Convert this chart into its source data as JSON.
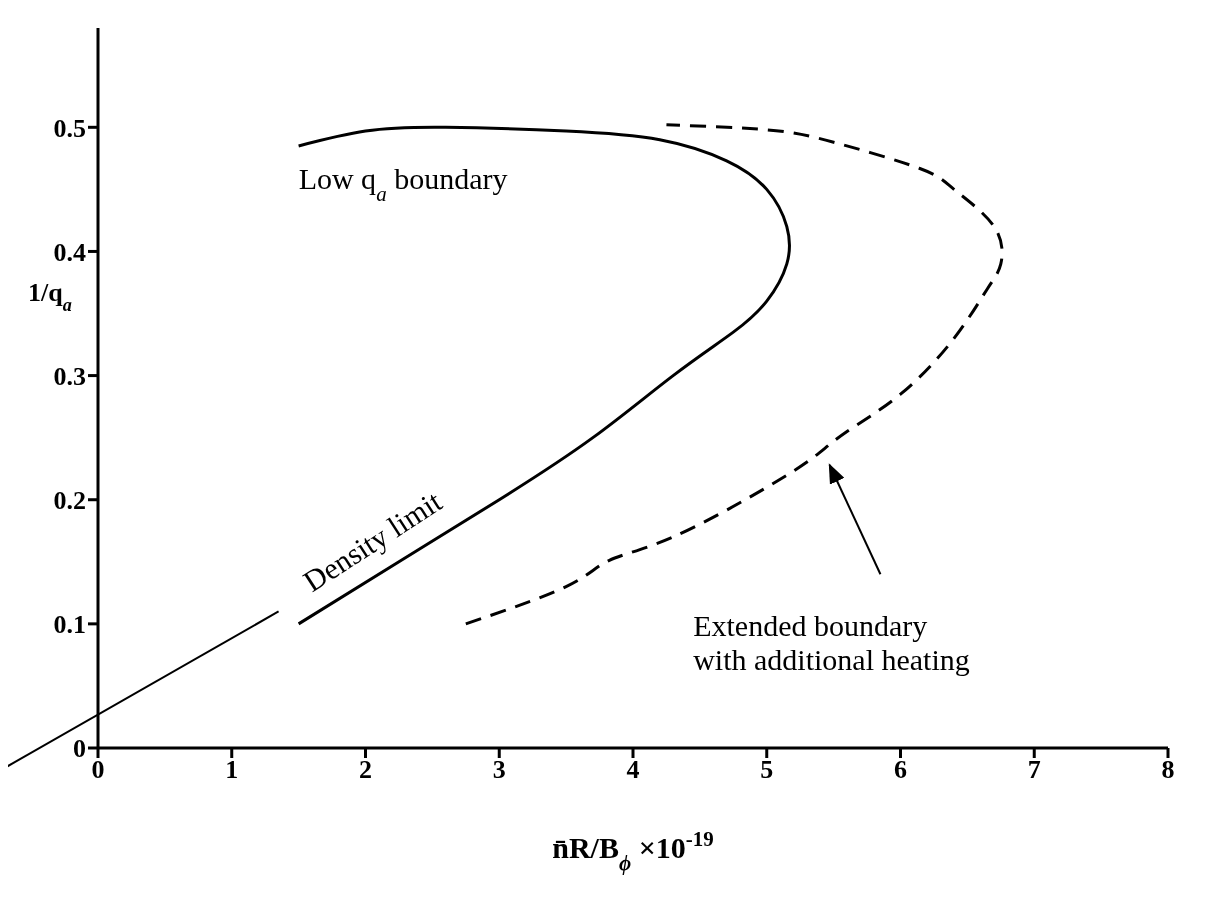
{
  "chart_data": {
    "type": "line",
    "xlabel": "n̄R/B$_{ϕ}$ ×10$^{-19}$",
    "ylabel": "1/q$_{a}$",
    "xlim": [
      0,
      8
    ],
    "xticks": [
      0,
      1,
      2,
      3,
      4,
      5,
      6,
      7,
      8
    ],
    "ylim": [
      0,
      0.58
    ],
    "yticks": [
      0,
      0.1,
      0.2,
      0.3,
      0.4,
      0.5
    ],
    "marker": "none",
    "series": [
      {
        "color": "#000000",
        "line_style": "solid",
        "x": [
          1.5,
          2.25,
          3.0,
          3.7,
          4.3,
          4.75,
          5.0,
          5.15,
          5.15,
          5.0,
          4.7,
          4.2,
          3.5,
          2.6,
          2.0,
          1.5
        ],
        "values": [
          0.1,
          0.15,
          0.2,
          0.25,
          0.3,
          0.335,
          0.36,
          0.39,
          0.42,
          0.45,
          0.473,
          0.49,
          0.497,
          0.5,
          0.497,
          0.485
        ]
      },
      {
        "color": "#000000",
        "line_style": "dashed",
        "x": [
          2.75,
          3.5,
          3.82,
          4.3,
          5.0,
          5.36,
          5.6,
          6.0,
          6.4,
          6.65,
          6.75,
          6.7,
          6.4,
          6.14,
          5.5,
          5.0,
          4.25
        ],
        "values": [
          0.1,
          0.13,
          0.151,
          0.17,
          0.21,
          0.235,
          0.255,
          0.285,
          0.33,
          0.37,
          0.39,
          0.42,
          0.45,
          0.467,
          0.488,
          0.498,
          0.502
        ]
      }
    ],
    "annotations": [
      "Low q$_{a}$ boundary",
      "Density limit",
      "Extended boundary\nwith additional heating"
    ]
  }
}
